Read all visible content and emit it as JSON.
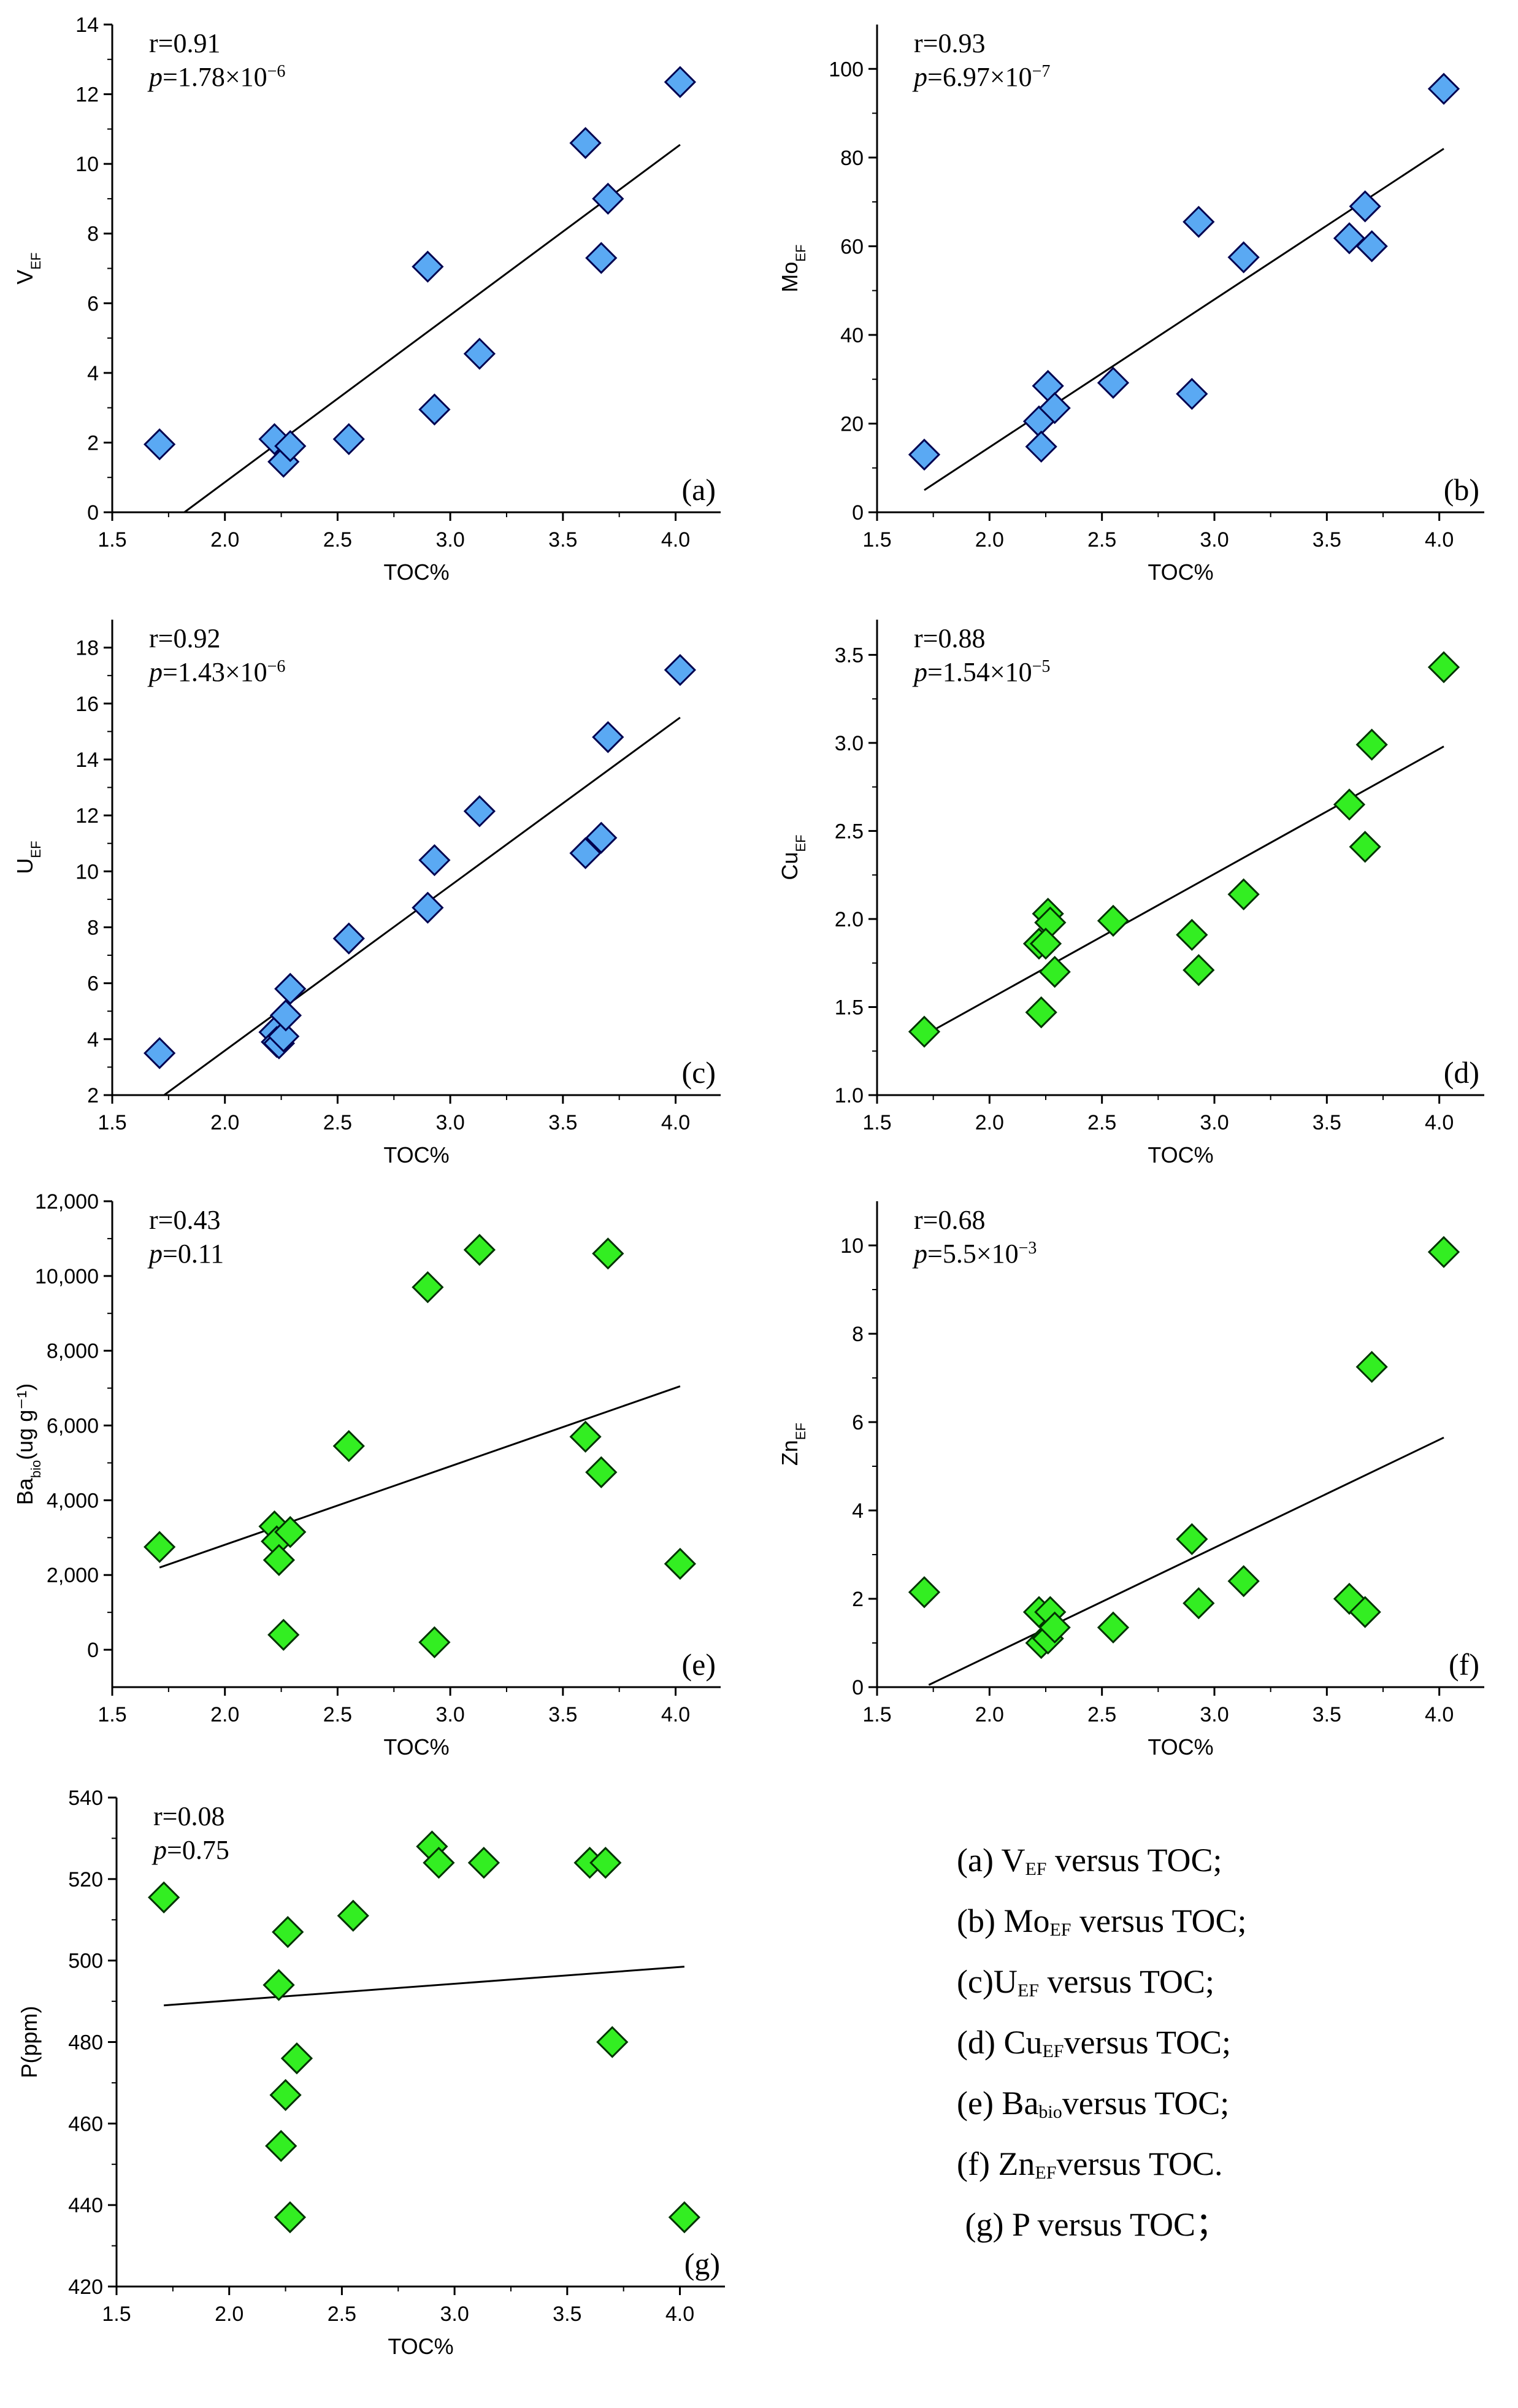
{
  "colors": {
    "blue_marker": "#5aa9f3",
    "green_marker": "#33ee22",
    "marker_edge": "#000050",
    "green_edge": "#003300",
    "line": "#000000"
  },
  "chart_data": [
    {
      "id": "a",
      "type": "scatter",
      "tag": "(a)",
      "ylabel_main": "V",
      "ylabel_sub": "EF",
      "ylabel_rest": "",
      "xlabel": "TOC%",
      "stat_r": "r=0.91",
      "stat_p_pre": "p",
      "stat_p_val": "=1.78×10",
      "stat_p_exp": "−6",
      "xlim": [
        1.5,
        4.2
      ],
      "ylim": [
        0,
        14
      ],
      "xticks": [
        1.5,
        2.0,
        2.5,
        3.0,
        3.5,
        4.0
      ],
      "yticks": [
        0,
        2,
        4,
        6,
        8,
        10,
        12,
        14
      ],
      "xtick_labels": [
        "1.5",
        "2.0",
        "2.5",
        "3.0",
        "3.5",
        "4.0"
      ],
      "ytick_labels": [
        "0",
        "2",
        "4",
        "6",
        "8",
        "10",
        "12",
        "14"
      ],
      "marker_color": "blue",
      "x": [
        1.71,
        2.22,
        2.26,
        2.29,
        2.55,
        2.9,
        2.93,
        3.13,
        3.6,
        3.67,
        3.7,
        4.02
      ],
      "y": [
        1.95,
        2.1,
        1.45,
        1.9,
        2.1,
        7.05,
        2.95,
        4.55,
        10.6,
        7.3,
        9.0,
        12.35
      ],
      "fit": [
        [
          1.82,
          0
        ],
        [
          4.02,
          10.55
        ]
      ]
    },
    {
      "id": "b",
      "type": "scatter",
      "tag": "(b)",
      "ylabel_main": "Mo",
      "ylabel_sub": "EF",
      "ylabel_rest": "",
      "xlabel": "TOC%",
      "stat_r": "r=0.93",
      "stat_p_pre": "p",
      "stat_p_val": "=6.97×10",
      "stat_p_exp": "−7",
      "xlim": [
        1.5,
        4.2
      ],
      "ylim": [
        0,
        110
      ],
      "xticks": [
        1.5,
        2.0,
        2.5,
        3.0,
        3.5,
        4.0
      ],
      "yticks": [
        0,
        20,
        40,
        60,
        80,
        100
      ],
      "xtick_labels": [
        "1.5",
        "2.0",
        "2.5",
        "3.0",
        "3.5",
        "4.0"
      ],
      "ytick_labels": [
        "0",
        "20",
        "40",
        "60",
        "80",
        "100"
      ],
      "marker_color": "blue",
      "x": [
        1.71,
        2.22,
        2.23,
        2.26,
        2.29,
        2.55,
        2.9,
        2.93,
        3.13,
        3.6,
        3.67,
        3.7,
        4.02
      ],
      "y": [
        13.0,
        20.5,
        14.8,
        28.5,
        23.5,
        29.2,
        26.7,
        65.5,
        57.5,
        61.8,
        69.0,
        60.0,
        95.5
      ],
      "fit": [
        [
          1.71,
          5.0
        ],
        [
          4.02,
          82.0
        ]
      ]
    },
    {
      "id": "c",
      "type": "scatter",
      "tag": "(c)",
      "ylabel_main": "U",
      "ylabel_sub": "EF",
      "ylabel_rest": "",
      "xlabel": "TOC%",
      "stat_r": "r=0.92",
      "stat_p_pre": "p",
      "stat_p_val": "=1.43×10",
      "stat_p_exp": "−6",
      "xlim": [
        1.5,
        4.2
      ],
      "ylim": [
        2,
        19
      ],
      "xticks": [
        1.5,
        2.0,
        2.5,
        3.0,
        3.5,
        4.0
      ],
      "yticks": [
        2,
        4,
        6,
        8,
        10,
        12,
        14,
        16,
        18
      ],
      "xtick_labels": [
        "1.5",
        "2.0",
        "2.5",
        "3.0",
        "3.5",
        "4.0"
      ],
      "ytick_labels": [
        "2",
        "4",
        "6",
        "8",
        "10",
        "12",
        "14",
        "16",
        "18"
      ],
      "marker_color": "blue",
      "x": [
        1.71,
        2.22,
        2.23,
        2.24,
        2.26,
        2.27,
        2.29,
        2.55,
        2.9,
        2.93,
        3.13,
        3.6,
        3.67,
        3.7,
        4.02
      ],
      "y": [
        3.5,
        4.25,
        3.9,
        3.85,
        4.1,
        4.85,
        5.8,
        7.6,
        8.7,
        10.4,
        12.15,
        10.65,
        11.2,
        14.8,
        17.2
      ],
      "fit": [
        [
          1.73,
          2.0
        ],
        [
          4.02,
          15.5
        ]
      ]
    },
    {
      "id": "d",
      "type": "scatter",
      "tag": "(d)",
      "ylabel_main": "Cu",
      "ylabel_sub": "EF",
      "ylabel_rest": "",
      "xlabel": "TOC%",
      "stat_r": "r=0.88",
      "stat_p_pre": "p",
      "stat_p_val": "=1.54×10",
      "stat_p_exp": "−5",
      "xlim": [
        1.5,
        4.2
      ],
      "ylim": [
        1.0,
        3.7
      ],
      "xticks": [
        1.5,
        2.0,
        2.5,
        3.0,
        3.5,
        4.0
      ],
      "yticks": [
        1.0,
        1.5,
        2.0,
        2.5,
        3.0,
        3.5
      ],
      "xtick_labels": [
        "1.5",
        "2.0",
        "2.5",
        "3.0",
        "3.5",
        "4.0"
      ],
      "ytick_labels": [
        "1.0",
        "1.5",
        "2.0",
        "2.5",
        "3.0",
        "3.5"
      ],
      "marker_color": "green",
      "x": [
        1.71,
        2.22,
        2.23,
        2.26,
        2.27,
        2.25,
        2.29,
        2.55,
        2.9,
        2.93,
        3.13,
        3.6,
        3.67,
        3.7,
        4.02
      ],
      "y": [
        1.36,
        1.86,
        1.47,
        2.03,
        1.98,
        1.86,
        1.7,
        1.99,
        1.91,
        1.71,
        2.14,
        2.65,
        2.41,
        2.99,
        3.43
      ],
      "fit": [
        [
          1.71,
          1.34
        ],
        [
          4.02,
          2.98
        ]
      ]
    },
    {
      "id": "e",
      "type": "scatter",
      "tag": "(e)",
      "ylabel_main": "Ba",
      "ylabel_sub": "bio",
      "ylabel_rest": "(ug g⁻¹)",
      "xlabel": "TOC%",
      "stat_r": "r=0.43",
      "stat_p_pre": "p",
      "stat_p_val": "=0.11",
      "stat_p_exp": "",
      "xlim": [
        1.5,
        4.2
      ],
      "ylim": [
        -1000,
        12000
      ],
      "xticks": [
        1.5,
        2.0,
        2.5,
        3.0,
        3.5,
        4.0
      ],
      "yticks": [
        0,
        2000,
        4000,
        6000,
        8000,
        10000,
        12000
      ],
      "xtick_labels": [
        "1.5",
        "2.0",
        "2.5",
        "3.0",
        "3.5",
        "4.0"
      ],
      "ytick_labels": [
        "0",
        "2,000",
        "4,000",
        "6,000",
        "8,000",
        "10,000",
        "12,000"
      ],
      "marker_color": "green",
      "x": [
        1.71,
        2.22,
        2.23,
        2.24,
        2.26,
        2.29,
        2.55,
        2.9,
        2.93,
        3.13,
        3.6,
        3.67,
        3.7,
        4.02
      ],
      "y": [
        2750,
        3300,
        2900,
        2400,
        400,
        3150,
        5450,
        9700,
        200,
        10700,
        5700,
        4750,
        10600,
        2300
      ],
      "fit": [
        [
          1.71,
          2200
        ],
        [
          4.02,
          7050
        ]
      ]
    },
    {
      "id": "f",
      "type": "scatter",
      "tag": "(f)",
      "ylabel_main": "Zn",
      "ylabel_sub": "EF",
      "ylabel_rest": "",
      "xlabel": "TOC%",
      "stat_r": "r=0.68",
      "stat_p_pre": "p",
      "stat_p_val": "=5.5×10",
      "stat_p_exp": "−3",
      "xlim": [
        1.5,
        4.2
      ],
      "ylim": [
        0,
        11
      ],
      "xticks": [
        1.5,
        2.0,
        2.5,
        3.0,
        3.5,
        4.0
      ],
      "yticks": [
        0,
        2,
        4,
        6,
        8,
        10
      ],
      "xtick_labels": [
        "1.5",
        "2.0",
        "2.5",
        "3.0",
        "3.5",
        "4.0"
      ],
      "ytick_labels": [
        "0",
        "2",
        "4",
        "6",
        "8",
        "10"
      ],
      "marker_color": "green",
      "x": [
        1.71,
        2.22,
        2.23,
        2.26,
        2.27,
        2.29,
        2.55,
        2.9,
        2.93,
        3.13,
        3.6,
        3.67,
        3.7,
        4.02
      ],
      "y": [
        2.15,
        1.7,
        1.0,
        1.1,
        1.7,
        1.35,
        1.35,
        3.35,
        1.9,
        2.4,
        2.0,
        1.7,
        7.25,
        9.85
      ],
      "fit": [
        [
          1.73,
          0.05
        ],
        [
          4.02,
          5.65
        ]
      ]
    },
    {
      "id": "g",
      "type": "scatter",
      "tag": "(g)",
      "ylabel_main": "P(ppm)",
      "ylabel_sub": "",
      "ylabel_rest": "",
      "xlabel": "TOC%",
      "stat_r": "r=0.08",
      "stat_p_pre": "p",
      "stat_p_val": "=0.75",
      "stat_p_exp": "",
      "xlim": [
        1.5,
        4.2
      ],
      "ylim": [
        420,
        540
      ],
      "xticks": [
        1.5,
        2.0,
        2.5,
        3.0,
        3.5,
        4.0
      ],
      "yticks": [
        420,
        440,
        460,
        480,
        500,
        520,
        540
      ],
      "xtick_labels": [
        "1.5",
        "2.0",
        "2.5",
        "3.0",
        "3.5",
        "4.0"
      ],
      "ytick_labels": [
        "420",
        "440",
        "460",
        "480",
        "500",
        "520",
        "540"
      ],
      "marker_color": "green",
      "x": [
        1.71,
        2.22,
        2.23,
        2.25,
        2.26,
        2.27,
        2.3,
        2.55,
        2.9,
        2.93,
        3.13,
        3.6,
        3.67,
        3.7,
        4.02
      ],
      "y": [
        515.5,
        494.0,
        454.5,
        467.0,
        507.0,
        437.0,
        476.0,
        511.0,
        528.0,
        524.0,
        524.0,
        524.0,
        524.0,
        480.0,
        437.0
      ],
      "fit": [
        [
          1.71,
          489.0
        ],
        [
          4.02,
          498.5
        ]
      ]
    }
  ],
  "caption": [
    {
      "pre": "(a) V",
      "sub": "EF",
      "post": " versus TOC;"
    },
    {
      "pre": "(b) Mo",
      "sub": "EF",
      "post": " versus TOC;"
    },
    {
      "pre": "(c)U",
      "sub": "EF",
      "post": " versus TOC;"
    },
    {
      "pre": "(d) Cu",
      "sub": "EF",
      "post": "versus TOC;"
    },
    {
      "pre": "(e) Ba",
      "sub": "bio",
      "post": "versus TOC;"
    },
    {
      "pre": "(f) Zn",
      "sub": "EF",
      "post": "versus TOC."
    },
    {
      "pre": " (g) P versus TOC；",
      "sub": "",
      "post": ""
    }
  ]
}
